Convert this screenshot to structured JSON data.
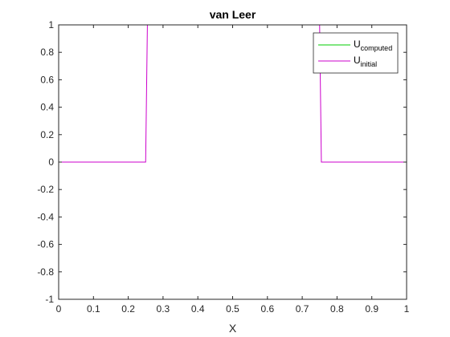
{
  "chart_data": {
    "type": "line",
    "title": "van Leer",
    "xlabel": "X",
    "ylabel": "",
    "xlim": [
      0,
      1
    ],
    "ylim": [
      -1,
      1
    ],
    "xticks": [
      "0",
      "0.1",
      "0.2",
      "0.3",
      "0.4",
      "0.5",
      "0.6",
      "0.7",
      "0.8",
      "0.9",
      "1"
    ],
    "yticks": [
      "-1",
      "-0.8",
      "-0.6",
      "-0.4",
      "-0.2",
      "0",
      "0.2",
      "0.4",
      "0.6",
      "0.8",
      "1"
    ],
    "grid": false,
    "legend_position": "top-right",
    "series": [
      {
        "name": "U",
        "subscript": "computed",
        "color": "#00cc00",
        "x": [
          0,
          1
        ],
        "y": [
          -1,
          -1
        ]
      },
      {
        "name": "U",
        "subscript": "initial",
        "color": "#cc00cc",
        "x": [
          0,
          0.25,
          0.255,
          0.75,
          0.755,
          1
        ],
        "y": [
          0,
          0,
          1,
          1,
          0,
          0
        ]
      }
    ]
  }
}
